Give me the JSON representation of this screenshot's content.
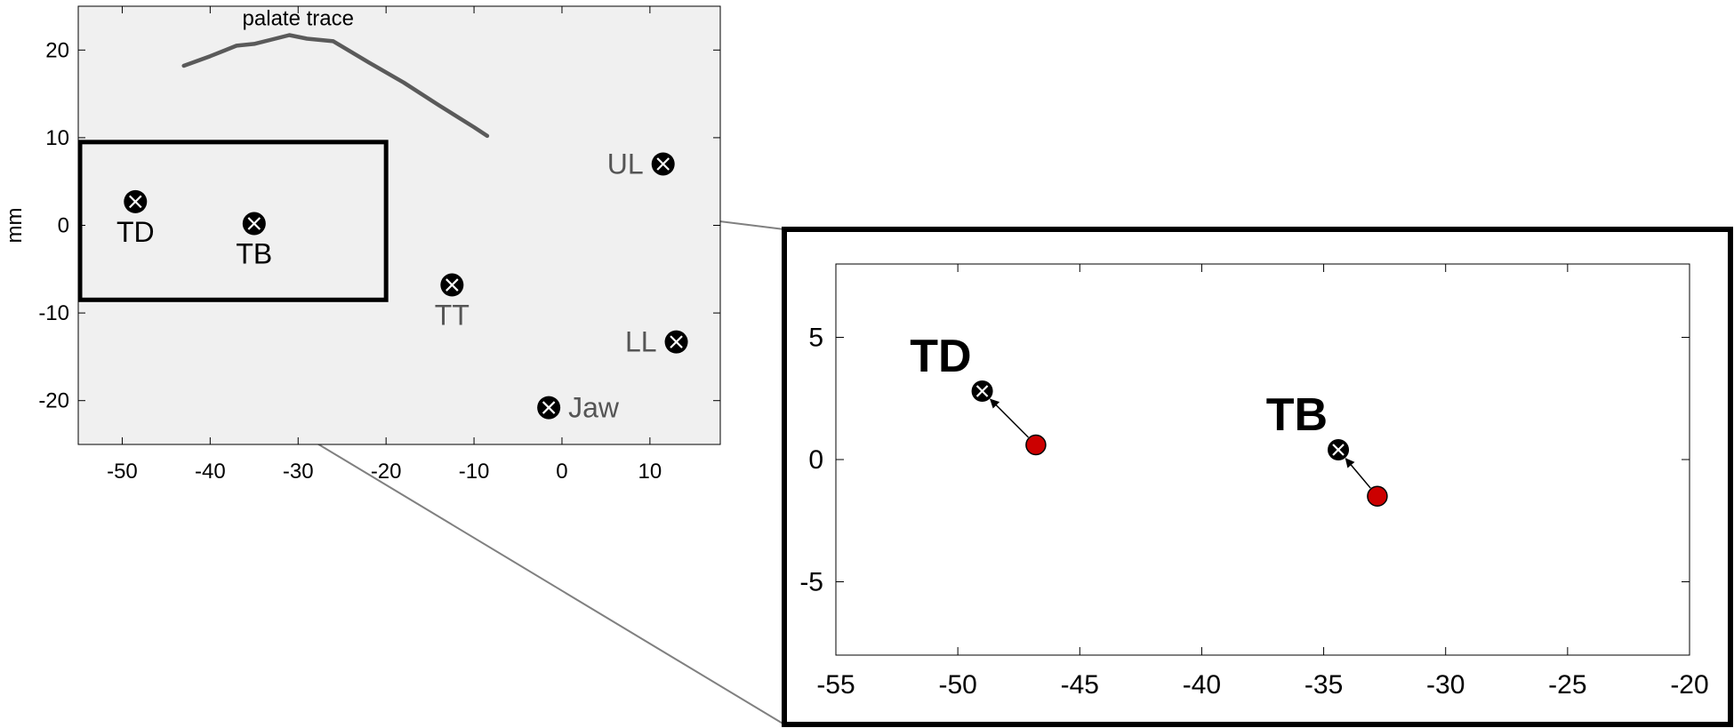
{
  "chart_data": [
    {
      "type": "scatter",
      "title": "",
      "xlabel": "",
      "ylabel": "mm",
      "xlim": [
        -55,
        18
      ],
      "ylim": [
        -25,
        25
      ],
      "xticks": [
        -50,
        -40,
        -30,
        -20,
        -10,
        0,
        10
      ],
      "yticks": [
        -20,
        -10,
        0,
        10,
        20
      ],
      "background": "#f0f0f0",
      "annotation": "palate trace",
      "palate_trace": {
        "x": [
          -43,
          -40,
          -37,
          -35,
          -33,
          -31,
          -29,
          -26,
          -22,
          -18,
          -14,
          -10,
          -8.5
        ],
        "y": [
          18.2,
          19.3,
          20.5,
          20.7,
          21.2,
          21.7,
          21.3,
          21.0,
          18.6,
          16.3,
          13.7,
          11.2,
          10.2
        ]
      },
      "points": [
        {
          "label": "TD",
          "x": -48.5,
          "y": 2.7,
          "label_pos": "below"
        },
        {
          "label": "TB",
          "x": -35,
          "y": 0.2,
          "label_pos": "below"
        },
        {
          "label": "TT",
          "x": -12.5,
          "y": -6.8,
          "label_pos": "below"
        },
        {
          "label": "UL",
          "x": 11.5,
          "y": 7.0,
          "label_pos": "left"
        },
        {
          "label": "LL",
          "x": 13.0,
          "y": -13.3,
          "label_pos": "left"
        },
        {
          "label": "Jaw",
          "x": -1.5,
          "y": -20.8,
          "label_pos": "right"
        }
      ],
      "zoom_box": {
        "x": [
          -55,
          -20
        ],
        "y": [
          -8.5,
          9.5
        ]
      }
    },
    {
      "type": "scatter",
      "title": "",
      "xlabel": "",
      "ylabel": "",
      "xlim": [
        -55,
        -20
      ],
      "ylim": [
        -8,
        8
      ],
      "xticks": [
        -55,
        -50,
        -45,
        -40,
        -35,
        -30,
        -25,
        -20
      ],
      "yticks": [
        -5,
        0,
        5
      ],
      "series": [
        {
          "label": "TD",
          "start": {
            "x": -46.8,
            "y": 0.6
          },
          "end": {
            "x": -49.0,
            "y": 2.8
          }
        },
        {
          "label": "TB",
          "start": {
            "x": -32.8,
            "y": -1.5
          },
          "end": {
            "x": -34.4,
            "y": 0.4
          }
        }
      ],
      "start_color": "#cc0000"
    }
  ]
}
